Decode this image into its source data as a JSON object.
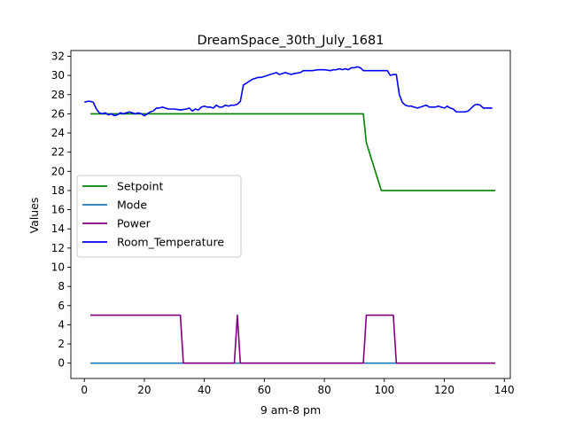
{
  "chart_data": {
    "type": "line",
    "title": "DreamSpace_30th_July_1681",
    "xlabel": "9 am-8 pm",
    "ylabel": "Values",
    "xlim": [
      -4.5,
      142
    ],
    "ylim": [
      -1.6,
      32.6
    ],
    "xticks": [
      0,
      20,
      40,
      60,
      80,
      100,
      120,
      140
    ],
    "yticks": [
      0,
      2,
      4,
      6,
      8,
      10,
      12,
      14,
      16,
      18,
      20,
      22,
      24,
      26,
      28,
      30,
      32
    ],
    "legend_position": "center-left",
    "grid": false,
    "series": [
      {
        "name": "Setpoint",
        "color": "#008000",
        "points": [
          [
            2,
            26
          ],
          [
            93,
            26
          ],
          [
            94,
            23
          ],
          [
            99,
            18
          ],
          [
            137,
            18
          ]
        ]
      },
      {
        "name": "Mode",
        "color": "#1f77b4",
        "points": [
          [
            2,
            0
          ],
          [
            137,
            0
          ]
        ]
      },
      {
        "name": "Power",
        "color": "#800080",
        "points": [
          [
            2,
            5
          ],
          [
            32,
            5
          ],
          [
            33,
            0
          ],
          [
            50,
            0
          ],
          [
            51,
            5
          ],
          [
            52,
            0
          ],
          [
            93,
            0
          ],
          [
            94,
            5
          ],
          [
            103,
            5
          ],
          [
            104,
            0
          ],
          [
            137,
            0
          ]
        ]
      },
      {
        "name": "Room_Temperature",
        "color": "#0000ff",
        "points": [
          [
            0,
            27.2
          ],
          [
            1,
            27.3
          ],
          [
            2,
            27.3
          ],
          [
            3,
            27.2
          ],
          [
            4,
            26.5
          ],
          [
            5,
            26.1
          ],
          [
            6,
            26.0
          ],
          [
            7,
            26.1
          ],
          [
            8,
            25.9
          ],
          [
            9,
            26.0
          ],
          [
            10,
            25.8
          ],
          [
            11,
            25.9
          ],
          [
            12,
            26.1
          ],
          [
            13,
            26.0
          ],
          [
            14,
            26.1
          ],
          [
            15,
            26.2
          ],
          [
            16,
            26.1
          ],
          [
            17,
            26.0
          ],
          [
            18,
            26.1
          ],
          [
            19,
            26.0
          ],
          [
            20,
            25.8
          ],
          [
            21,
            26.0
          ],
          [
            22,
            26.2
          ],
          [
            23,
            26.3
          ],
          [
            24,
            26.6
          ],
          [
            25,
            26.6
          ],
          [
            26,
            26.7
          ],
          [
            27,
            26.6
          ],
          [
            28,
            26.5
          ],
          [
            30,
            26.5
          ],
          [
            32,
            26.4
          ],
          [
            34,
            26.5
          ],
          [
            35,
            26.6
          ],
          [
            36,
            26.3
          ],
          [
            37,
            26.5
          ],
          [
            38,
            26.4
          ],
          [
            39,
            26.7
          ],
          [
            40,
            26.8
          ],
          [
            41,
            26.7
          ],
          [
            42,
            26.7
          ],
          [
            43,
            26.6
          ],
          [
            44,
            26.9
          ],
          [
            45,
            26.7
          ],
          [
            46,
            26.7
          ],
          [
            47,
            26.9
          ],
          [
            48,
            26.8
          ],
          [
            49,
            26.9
          ],
          [
            50,
            26.9
          ],
          [
            51,
            27.0
          ],
          [
            52,
            27.3
          ],
          [
            53,
            29.0
          ],
          [
            54,
            29.2
          ],
          [
            55,
            29.4
          ],
          [
            56,
            29.6
          ],
          [
            57,
            29.7
          ],
          [
            58,
            29.8
          ],
          [
            59,
            29.8
          ],
          [
            60,
            29.9
          ],
          [
            61,
            30.0
          ],
          [
            62,
            30.1
          ],
          [
            63,
            30.2
          ],
          [
            64,
            30.3
          ],
          [
            65,
            30.1
          ],
          [
            66,
            30.2
          ],
          [
            67,
            30.3
          ],
          [
            68,
            30.2
          ],
          [
            69,
            30.1
          ],
          [
            70,
            30.2
          ],
          [
            72,
            30.3
          ],
          [
            73,
            30.5
          ],
          [
            74,
            30.5
          ],
          [
            76,
            30.5
          ],
          [
            78,
            30.6
          ],
          [
            80,
            30.6
          ],
          [
            82,
            30.5
          ],
          [
            83,
            30.6
          ],
          [
            84,
            30.6
          ],
          [
            85,
            30.7
          ],
          [
            86,
            30.6
          ],
          [
            87,
            30.7
          ],
          [
            88,
            30.6
          ],
          [
            89,
            30.8
          ],
          [
            90,
            30.8
          ],
          [
            91,
            30.9
          ],
          [
            92,
            30.8
          ],
          [
            93,
            30.5
          ],
          [
            94,
            30.5
          ],
          [
            96,
            30.5
          ],
          [
            98,
            30.5
          ],
          [
            100,
            30.5
          ],
          [
            101,
            30.5
          ],
          [
            102,
            30.0
          ],
          [
            103,
            30.1
          ],
          [
            104,
            30.1
          ],
          [
            105,
            28.0
          ],
          [
            106,
            27.2
          ],
          [
            107,
            26.9
          ],
          [
            108,
            26.8
          ],
          [
            109,
            26.8
          ],
          [
            110,
            26.7
          ],
          [
            111,
            26.6
          ],
          [
            112,
            26.7
          ],
          [
            113,
            26.8
          ],
          [
            114,
            26.9
          ],
          [
            115,
            26.7
          ],
          [
            116,
            26.7
          ],
          [
            117,
            26.7
          ],
          [
            118,
            26.8
          ],
          [
            119,
            26.7
          ],
          [
            120,
            26.6
          ],
          [
            121,
            26.8
          ],
          [
            122,
            26.6
          ],
          [
            123,
            26.5
          ],
          [
            124,
            26.2
          ],
          [
            125,
            26.2
          ],
          [
            126,
            26.2
          ],
          [
            127,
            26.2
          ],
          [
            128,
            26.3
          ],
          [
            129,
            26.6
          ],
          [
            130,
            26.9
          ],
          [
            131,
            27.0
          ],
          [
            132,
            26.9
          ],
          [
            133,
            26.6
          ],
          [
            134,
            26.6
          ],
          [
            135,
            26.6
          ],
          [
            136,
            26.6
          ]
        ]
      }
    ]
  }
}
